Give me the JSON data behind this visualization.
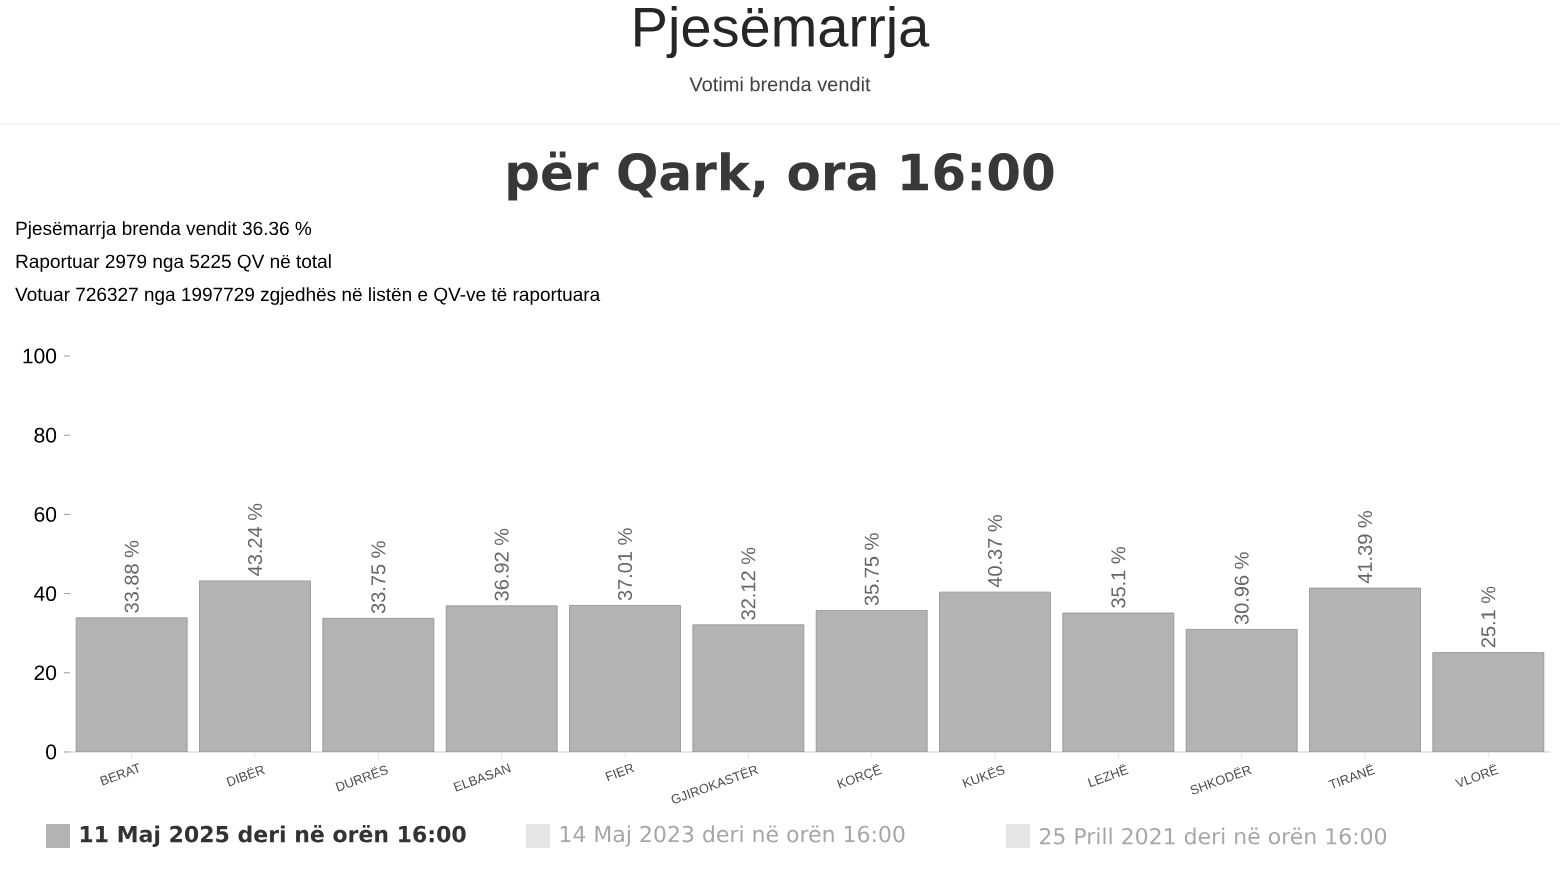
{
  "chart_data": {
    "type": "bar",
    "title": "Pjesëmarrja",
    "subtitle": "Votimi brenda vendit",
    "annotations": [
      "për Qark, ora 16:00",
      "Pjesëmarrja brenda vendit 36.36 %",
      "Raportuar 2979 nga 5225 QV në total",
      "Votuar 726327 nga 1997729 zgjedhës në listën e QV-ve të raportuara"
    ],
    "categories": [
      "BERAT",
      "DIBËR",
      "DURRËS",
      "ELBASAN",
      "FIER",
      "GJIROKASTËR",
      "KORÇË",
      "KUKËS",
      "LEZHË",
      "SHKODËR",
      "TIRANË",
      "VLORË"
    ],
    "series": [
      {
        "name": "11 Maj 2025 deri në orën 16:00",
        "color": "#b3b3b3",
        "values": [
          33.88,
          43.24,
          33.75,
          36.92,
          37.01,
          32.12,
          35.75,
          40.37,
          35.1,
          30.96,
          41.39,
          25.1
        ],
        "value_labels": [
          "33.88 %",
          "43.24 %",
          "33.75 %",
          "36.92 %",
          "37.01 %",
          "32.12 %",
          "35.75 %",
          "40.37 %",
          "35.1 %",
          "30.96 %",
          "41.39 %",
          "25.1 %"
        ]
      },
      {
        "name": "14 Maj 2023 deri në orën 16:00",
        "color": "#e6e6e6",
        "values": [
          null,
          null,
          null,
          null,
          null,
          null,
          null,
          null,
          null,
          null,
          null,
          null
        ]
      },
      {
        "name": "25 Prill 2021 deri në orën 16:00",
        "color": "#e6e6e6",
        "values": [
          null,
          null,
          null,
          null,
          null,
          null,
          null,
          null,
          null,
          null,
          null,
          null
        ]
      }
    ],
    "ylim": [
      0,
      100
    ],
    "yticks": [
      0,
      20,
      40,
      60,
      80,
      100
    ],
    "grid": false,
    "legend": "bottom"
  }
}
